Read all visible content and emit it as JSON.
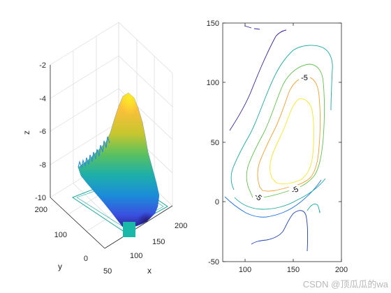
{
  "chart_data": [
    {
      "type": "surface",
      "xlabel": "x",
      "ylabel": "y",
      "zlabel": "z",
      "x_ticks": [
        "50",
        "100",
        "150",
        "200"
      ],
      "y_ticks": [
        "0",
        "100",
        "200"
      ],
      "z_ticks": [
        "-2",
        "-4",
        "-6",
        "-8",
        "-10"
      ],
      "xlim": [
        50,
        200
      ],
      "ylim": [
        0,
        200
      ],
      "zlim": [
        -10,
        -2
      ],
      "surface_peak_z": -4.1,
      "surface_min_z": -10,
      "colormap": "parula",
      "grid": true
    },
    {
      "type": "contour",
      "x_ticks": [
        "100",
        "150",
        "200"
      ],
      "y_ticks": [
        "150",
        "100",
        "50",
        "0",
        "-50"
      ],
      "xlim": [
        80,
        190
      ],
      "ylim": [
        -50,
        150
      ],
      "contour_labels": [
        "-5",
        "-5",
        "-5"
      ],
      "grid": false
    }
  ],
  "watermark": "CSDN @顶瓜瓜的wa"
}
